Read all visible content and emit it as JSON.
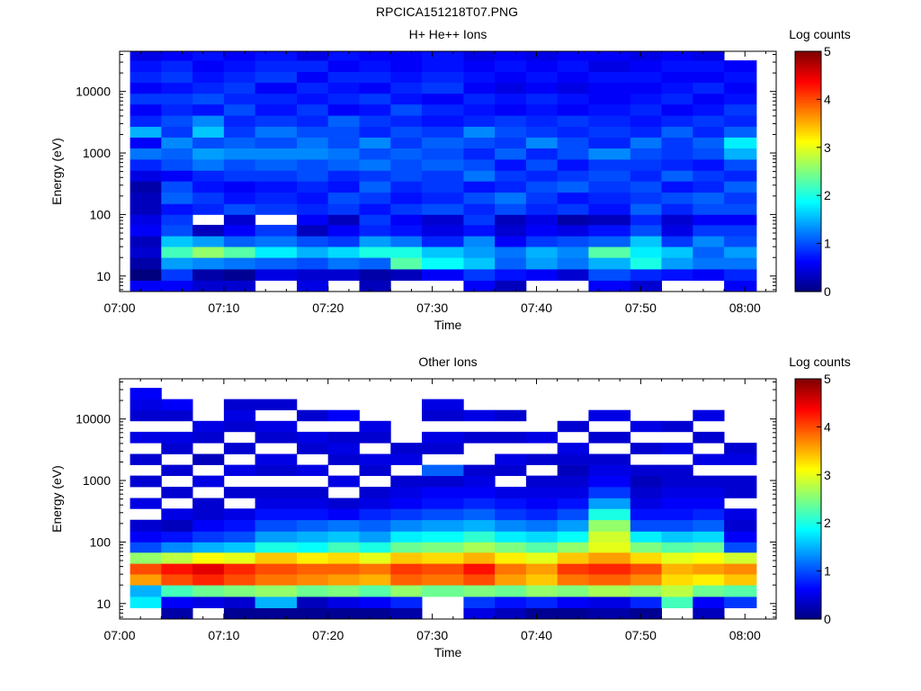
{
  "figure": {
    "title": "RPCICA151218T07.PNG",
    "x_tick_labels": [
      "07:00",
      "07:10",
      "07:20",
      "07:30",
      "07:40",
      "07:50",
      "08:00"
    ],
    "y_tick_labels": [
      "10",
      "100",
      "1000",
      "10000"
    ],
    "colorbar_tick_labels": [
      "0",
      "1",
      "2",
      "3",
      "4",
      "5"
    ],
    "colormap": [
      "#00007f",
      "#0000ff",
      "#007fff",
      "#00ffff",
      "#7fff7f",
      "#ffff00",
      "#ff7f00",
      "#ff0000",
      "#7f0000"
    ]
  },
  "chart_data": [
    {
      "type": "heatmap",
      "title": "H+ He++ Ions",
      "xlabel": "Time",
      "ylabel": "Energy (eV)",
      "colorbar_label": "Log counts",
      "x_range": [
        "07:00",
        "08:03"
      ],
      "y_range": [
        5.6,
        45000
      ],
      "y_scale": "log",
      "color_range": [
        0,
        5
      ],
      "time_bin_starts": [
        "07:01",
        "07:04",
        "07:07",
        "07:10",
        "07:13",
        "07:17",
        "07:20",
        "07:23",
        "07:26",
        "07:29",
        "07:33",
        "07:36",
        "07:39",
        "07:42",
        "07:45",
        "07:49",
        "07:52",
        "07:55",
        "07:58"
      ],
      "energy_bin_edges": [
        5.6,
        8.5,
        13,
        20,
        30,
        45,
        68,
        100,
        150,
        230,
        350,
        520,
        790,
        1200,
        1800,
        2700,
        4100,
        6200,
        9300,
        14000,
        21000,
        32000,
        45000
      ],
      "log_counts": [
        [
          0.6,
          0.0,
          0.2,
          0.4,
          0.3,
          0.6,
          0.5,
          0.3,
          0.3,
          0.2,
          0.5,
          0.8,
          1.2,
          0.6,
          1.5,
          0.8,
          0.6,
          0.9,
          0.6,
          0.8,
          0.7,
          0.5
        ],
        [
          0.6,
          0.9,
          1.4,
          2.2,
          1.6,
          1.0,
          0.9,
          0.7,
          1.1,
          1.0,
          0.6,
          1.0,
          1.1,
          1.3,
          0.9,
          1.0,
          0.8,
          0.9,
          0.7,
          0.9,
          0.8,
          0.6
        ],
        [
          0.4,
          0.2,
          1.3,
          2.6,
          1.4,
          0.3,
          null,
          0.8,
          0.9,
          0.7,
          0.8,
          1.2,
          1.4,
          1.0,
          1.6,
          1.3,
          0.7,
          1.0,
          0.8,
          0.7,
          0.6,
          0.7
        ],
        [
          0.4,
          0.1,
          1.2,
          2.3,
          1.1,
          0.6,
          0.4,
          1.0,
          0.7,
          0.6,
          0.9,
          1.0,
          1.3,
          1.1,
          0.9,
          0.8,
          1.0,
          0.8,
          0.9,
          0.8,
          0.7,
          0.6
        ],
        [
          null,
          0.5,
          1.1,
          1.8,
          1.2,
          0.9,
          null,
          0.9,
          0.8,
          0.7,
          0.9,
          1.1,
          1.3,
          1.0,
          1.2,
          0.9,
          0.7,
          0.8,
          0.6,
          0.9,
          0.8,
          0.7
        ],
        [
          0.5,
          0.4,
          1.0,
          1.5,
          1.0,
          0.3,
          0.6,
          0.8,
          0.7,
          0.8,
          1.0,
          1.0,
          1.3,
          1.2,
          1.0,
          0.8,
          0.9,
          0.7,
          0.8,
          0.6,
          0.8,
          0.5
        ],
        [
          null,
          0.4,
          1.2,
          1.7,
          0.9,
          0.6,
          0.3,
          0.9,
          1.0,
          0.7,
          0.8,
          1.1,
          1.2,
          1.0,
          1.0,
          1.1,
          0.6,
          0.8,
          0.7,
          0.8,
          0.6,
          0.7
        ],
        [
          0.3,
          0.2,
          1.1,
          2.0,
          1.4,
          0.8,
          0.9,
          0.7,
          0.9,
          1.1,
          0.9,
          1.2,
          1.0,
          1.3,
          0.8,
          0.9,
          0.7,
          0.9,
          0.6,
          0.8,
          0.7,
          0.6
        ],
        [
          null,
          0.3,
          2.3,
          2.0,
          1.2,
          0.7,
          0.6,
          0.9,
          0.7,
          0.8,
          1.0,
          1.0,
          1.1,
          0.9,
          1.0,
          0.8,
          1.0,
          0.7,
          0.8,
          0.7,
          0.6,
          0.6
        ],
        [
          null,
          0.6,
          1.9,
          1.6,
          0.8,
          0.5,
          0.4,
          1.0,
          0.8,
          0.9,
          0.9,
          1.1,
          1.0,
          1.1,
          0.9,
          0.7,
          0.8,
          0.6,
          0.9,
          0.8,
          0.7,
          0.7
        ],
        [
          0.6,
          0.9,
          1.6,
          1.4,
          1.3,
          0.7,
          0.9,
          0.8,
          1.0,
          0.7,
          1.2,
          1.0,
          0.8,
          1.0,
          1.3,
          0.8,
          0.7,
          0.8,
          0.6,
          0.7,
          0.6,
          0.5
        ],
        [
          0.3,
          0.7,
          1.1,
          1.2,
          0.6,
          0.4,
          0.3,
          1.0,
          1.2,
          0.8,
          0.9,
          0.7,
          1.1,
          0.9,
          1.0,
          0.9,
          0.6,
          0.7,
          0.5,
          0.6,
          0.7,
          0.6
        ],
        [
          null,
          0.6,
          1.4,
          1.5,
          0.9,
          0.6,
          0.5,
          0.8,
          0.9,
          1.0,
          0.8,
          1.0,
          0.8,
          1.3,
          0.9,
          0.8,
          0.7,
          0.8,
          0.6,
          0.7,
          0.6,
          0.5
        ],
        [
          null,
          0.4,
          1.2,
          1.3,
          1.0,
          0.5,
          0.2,
          0.9,
          0.7,
          1.1,
          0.9,
          0.7,
          1.0,
          1.0,
          0.8,
          0.9,
          0.6,
          0.7,
          0.5,
          0.6,
          0.7,
          0.6
        ],
        [
          0.6,
          1.0,
          1.5,
          2.3,
          1.1,
          0.7,
          0.3,
          0.7,
          0.8,
          0.9,
          1.0,
          0.9,
          1.3,
          0.8,
          0.9,
          0.8,
          0.7,
          0.6,
          0.6,
          0.7,
          0.5,
          0.6
        ],
        [
          0.4,
          0.8,
          2.0,
          1.8,
          1.6,
          1.0,
          0.8,
          1.1,
          0.9,
          1.0,
          0.8,
          0.9,
          1.0,
          1.2,
          0.8,
          0.7,
          0.8,
          0.7,
          0.6,
          0.7,
          0.6,
          0.5
        ],
        [
          null,
          0.7,
          1.4,
          1.6,
          0.9,
          0.5,
          0.4,
          0.8,
          1.0,
          0.7,
          1.1,
          0.8,
          0.9,
          0.9,
          1.1,
          0.8,
          0.6,
          0.8,
          0.7,
          0.6,
          0.7,
          0.6
        ],
        [
          null,
          0.6,
          1.2,
          1.1,
          1.3,
          0.9,
          0.6,
          1.0,
          1.1,
          0.8,
          0.9,
          0.7,
          1.0,
          1.1,
          0.8,
          0.9,
          0.7,
          0.6,
          0.8,
          0.6,
          0.7,
          0.5
        ],
        [
          0.6,
          0.8,
          1.2,
          1.4,
          1.0,
          0.9,
          0.6,
          1.0,
          0.9,
          1.1,
          0.8,
          1.0,
          1.5,
          1.8,
          1.1,
          0.8,
          0.9,
          0.7,
          0.6,
          0.7,
          0.6,
          null
        ]
      ]
    },
    {
      "type": "heatmap",
      "title": "Other Ions",
      "xlabel": "Time",
      "ylabel": "Energy (eV)",
      "colorbar_label": "Log counts",
      "x_range": [
        "07:00",
        "08:03"
      ],
      "y_range": [
        5.6,
        45000
      ],
      "y_scale": "log",
      "color_range": [
        0,
        5
      ],
      "time_bin_starts": [
        "07:01",
        "07:04",
        "07:07",
        "07:10",
        "07:13",
        "07:17",
        "07:20",
        "07:23",
        "07:26",
        "07:29",
        "07:33",
        "07:36",
        "07:39",
        "07:42",
        "07:45",
        "07:49",
        "07:52",
        "07:55",
        "07:58"
      ],
      "energy_bin_edges": [
        5.6,
        8.5,
        13,
        20,
        30,
        45,
        68,
        100,
        150,
        230,
        350,
        520,
        790,
        1200,
        1800,
        2700,
        4100,
        6200,
        9300,
        14000,
        21000,
        32000,
        45000
      ],
      "log_counts": [
        [
          null,
          1.8,
          1.5,
          3.6,
          4.0,
          2.6,
          1.0,
          0.6,
          0.4,
          null,
          0.5,
          null,
          0.4,
          null,
          0.4,
          null,
          0.5,
          null,
          0.4,
          0.5,
          0.6,
          null
        ],
        [
          0.2,
          0.6,
          2.2,
          4.0,
          4.3,
          2.8,
          1.3,
          0.7,
          0.3,
          0.5,
          null,
          0.4,
          null,
          0.4,
          null,
          0.4,
          0.5,
          null,
          0.4,
          0.6,
          null,
          null
        ],
        [
          null,
          0.5,
          2.4,
          4.2,
          4.5,
          3.1,
          1.5,
          0.9,
          0.6,
          0.4,
          0.4,
          null,
          0.5,
          null,
          0.3,
          null,
          0.4,
          0.5,
          null,
          null,
          null,
          null
        ],
        [
          0.1,
          0.4,
          2.5,
          4.0,
          4.2,
          3.0,
          1.6,
          1.0,
          0.7,
          0.5,
          null,
          0.4,
          null,
          0.5,
          null,
          0.4,
          null,
          0.4,
          0.5,
          0.4,
          null,
          null
        ],
        [
          0.1,
          1.5,
          2.6,
          3.8,
          4.0,
          3.4,
          2.0,
          1.4,
          1.0,
          0.7,
          0.5,
          0.4,
          null,
          0.4,
          0.5,
          null,
          0.4,
          0.5,
          null,
          0.4,
          null,
          null
        ],
        [
          0.1,
          0.3,
          2.4,
          3.7,
          3.9,
          3.2,
          1.9,
          1.5,
          1.1,
          0.7,
          0.5,
          0.4,
          null,
          0.5,
          null,
          0.4,
          0.5,
          null,
          0.4,
          null,
          null,
          null
        ],
        [
          0.1,
          0.5,
          2.5,
          3.6,
          3.9,
          3.3,
          2.2,
          1.6,
          1.2,
          0.6,
          0.4,
          null,
          0.5,
          null,
          0.4,
          0.5,
          0.4,
          null,
          0.6,
          null,
          null,
          null
        ],
        [
          0.1,
          0.6,
          2.3,
          3.5,
          3.8,
          3.0,
          2.0,
          1.4,
          1.1,
          0.8,
          0.5,
          0.4,
          null,
          0.4,
          0.5,
          null,
          0.4,
          0.5,
          null,
          null,
          null,
          null
        ],
        [
          0.2,
          0.8,
          2.6,
          3.9,
          4.1,
          3.4,
          2.4,
          1.8,
          1.3,
          0.9,
          0.6,
          0.5,
          0.4,
          null,
          0.5,
          0.4,
          null,
          null,
          null,
          null,
          null,
          null
        ],
        [
          null,
          null,
          2.4,
          3.8,
          4.0,
          3.3,
          2.5,
          1.9,
          1.4,
          1.0,
          0.7,
          0.6,
          0.4,
          1.1,
          null,
          0.4,
          0.5,
          null,
          0.4,
          0.5,
          null,
          null
        ],
        [
          0.5,
          0.9,
          2.5,
          4.0,
          4.3,
          3.5,
          2.7,
          2.1,
          1.5,
          1.1,
          0.8,
          0.6,
          0.5,
          0.4,
          null,
          null,
          0.4,
          null,
          0.5,
          null,
          null,
          null
        ],
        [
          0.3,
          0.7,
          2.4,
          3.6,
          3.8,
          3.2,
          2.5,
          1.8,
          1.3,
          0.9,
          0.7,
          0.5,
          null,
          0.4,
          0.5,
          null,
          0.4,
          null,
          0.4,
          null,
          null,
          null
        ],
        [
          0.1,
          0.8,
          2.6,
          3.4,
          3.6,
          3.0,
          2.3,
          1.7,
          1.2,
          0.8,
          0.6,
          0.5,
          0.4,
          null,
          0.4,
          null,
          0.5,
          null,
          null,
          null,
          null,
          null
        ],
        [
          0.1,
          0.6,
          2.5,
          3.8,
          4.1,
          3.4,
          2.6,
          1.9,
          1.4,
          1.0,
          0.7,
          0.5,
          0.4,
          0.3,
          0.4,
          0.5,
          null,
          0.4,
          null,
          null,
          null,
          null
        ],
        [
          0.2,
          0.5,
          2.7,
          3.9,
          4.2,
          3.6,
          3.0,
          2.9,
          2.6,
          2.0,
          1.4,
          0.9,
          0.6,
          0.5,
          0.4,
          null,
          0.4,
          null,
          0.5,
          null,
          null,
          null
        ],
        [
          0.1,
          0.8,
          2.6,
          3.7,
          4.0,
          3.3,
          2.5,
          1.8,
          1.0,
          0.7,
          0.5,
          0.4,
          0.3,
          0.4,
          null,
          0.4,
          null,
          0.5,
          null,
          null,
          null,
          null
        ],
        [
          null,
          2.2,
          2.8,
          3.3,
          3.5,
          3.0,
          2.3,
          1.6,
          1.0,
          0.7,
          0.6,
          0.5,
          0.4,
          0.4,
          null,
          0.5,
          null,
          0.4,
          null,
          null,
          null,
          null
        ],
        [
          0.3,
          0.6,
          2.4,
          3.2,
          3.6,
          3.1,
          2.4,
          1.7,
          1.1,
          0.8,
          0.6,
          0.5,
          0.4,
          null,
          0.5,
          null,
          0.4,
          null,
          0.5,
          null,
          null,
          null
        ],
        [
          null,
          0.9,
          2.3,
          3.4,
          3.7,
          2.9,
          1.0,
          0.6,
          0.4,
          0.5,
          null,
          0.4,
          0.4,
          null,
          0.5,
          0.4,
          null,
          null,
          null,
          null,
          null,
          null
        ]
      ]
    }
  ]
}
